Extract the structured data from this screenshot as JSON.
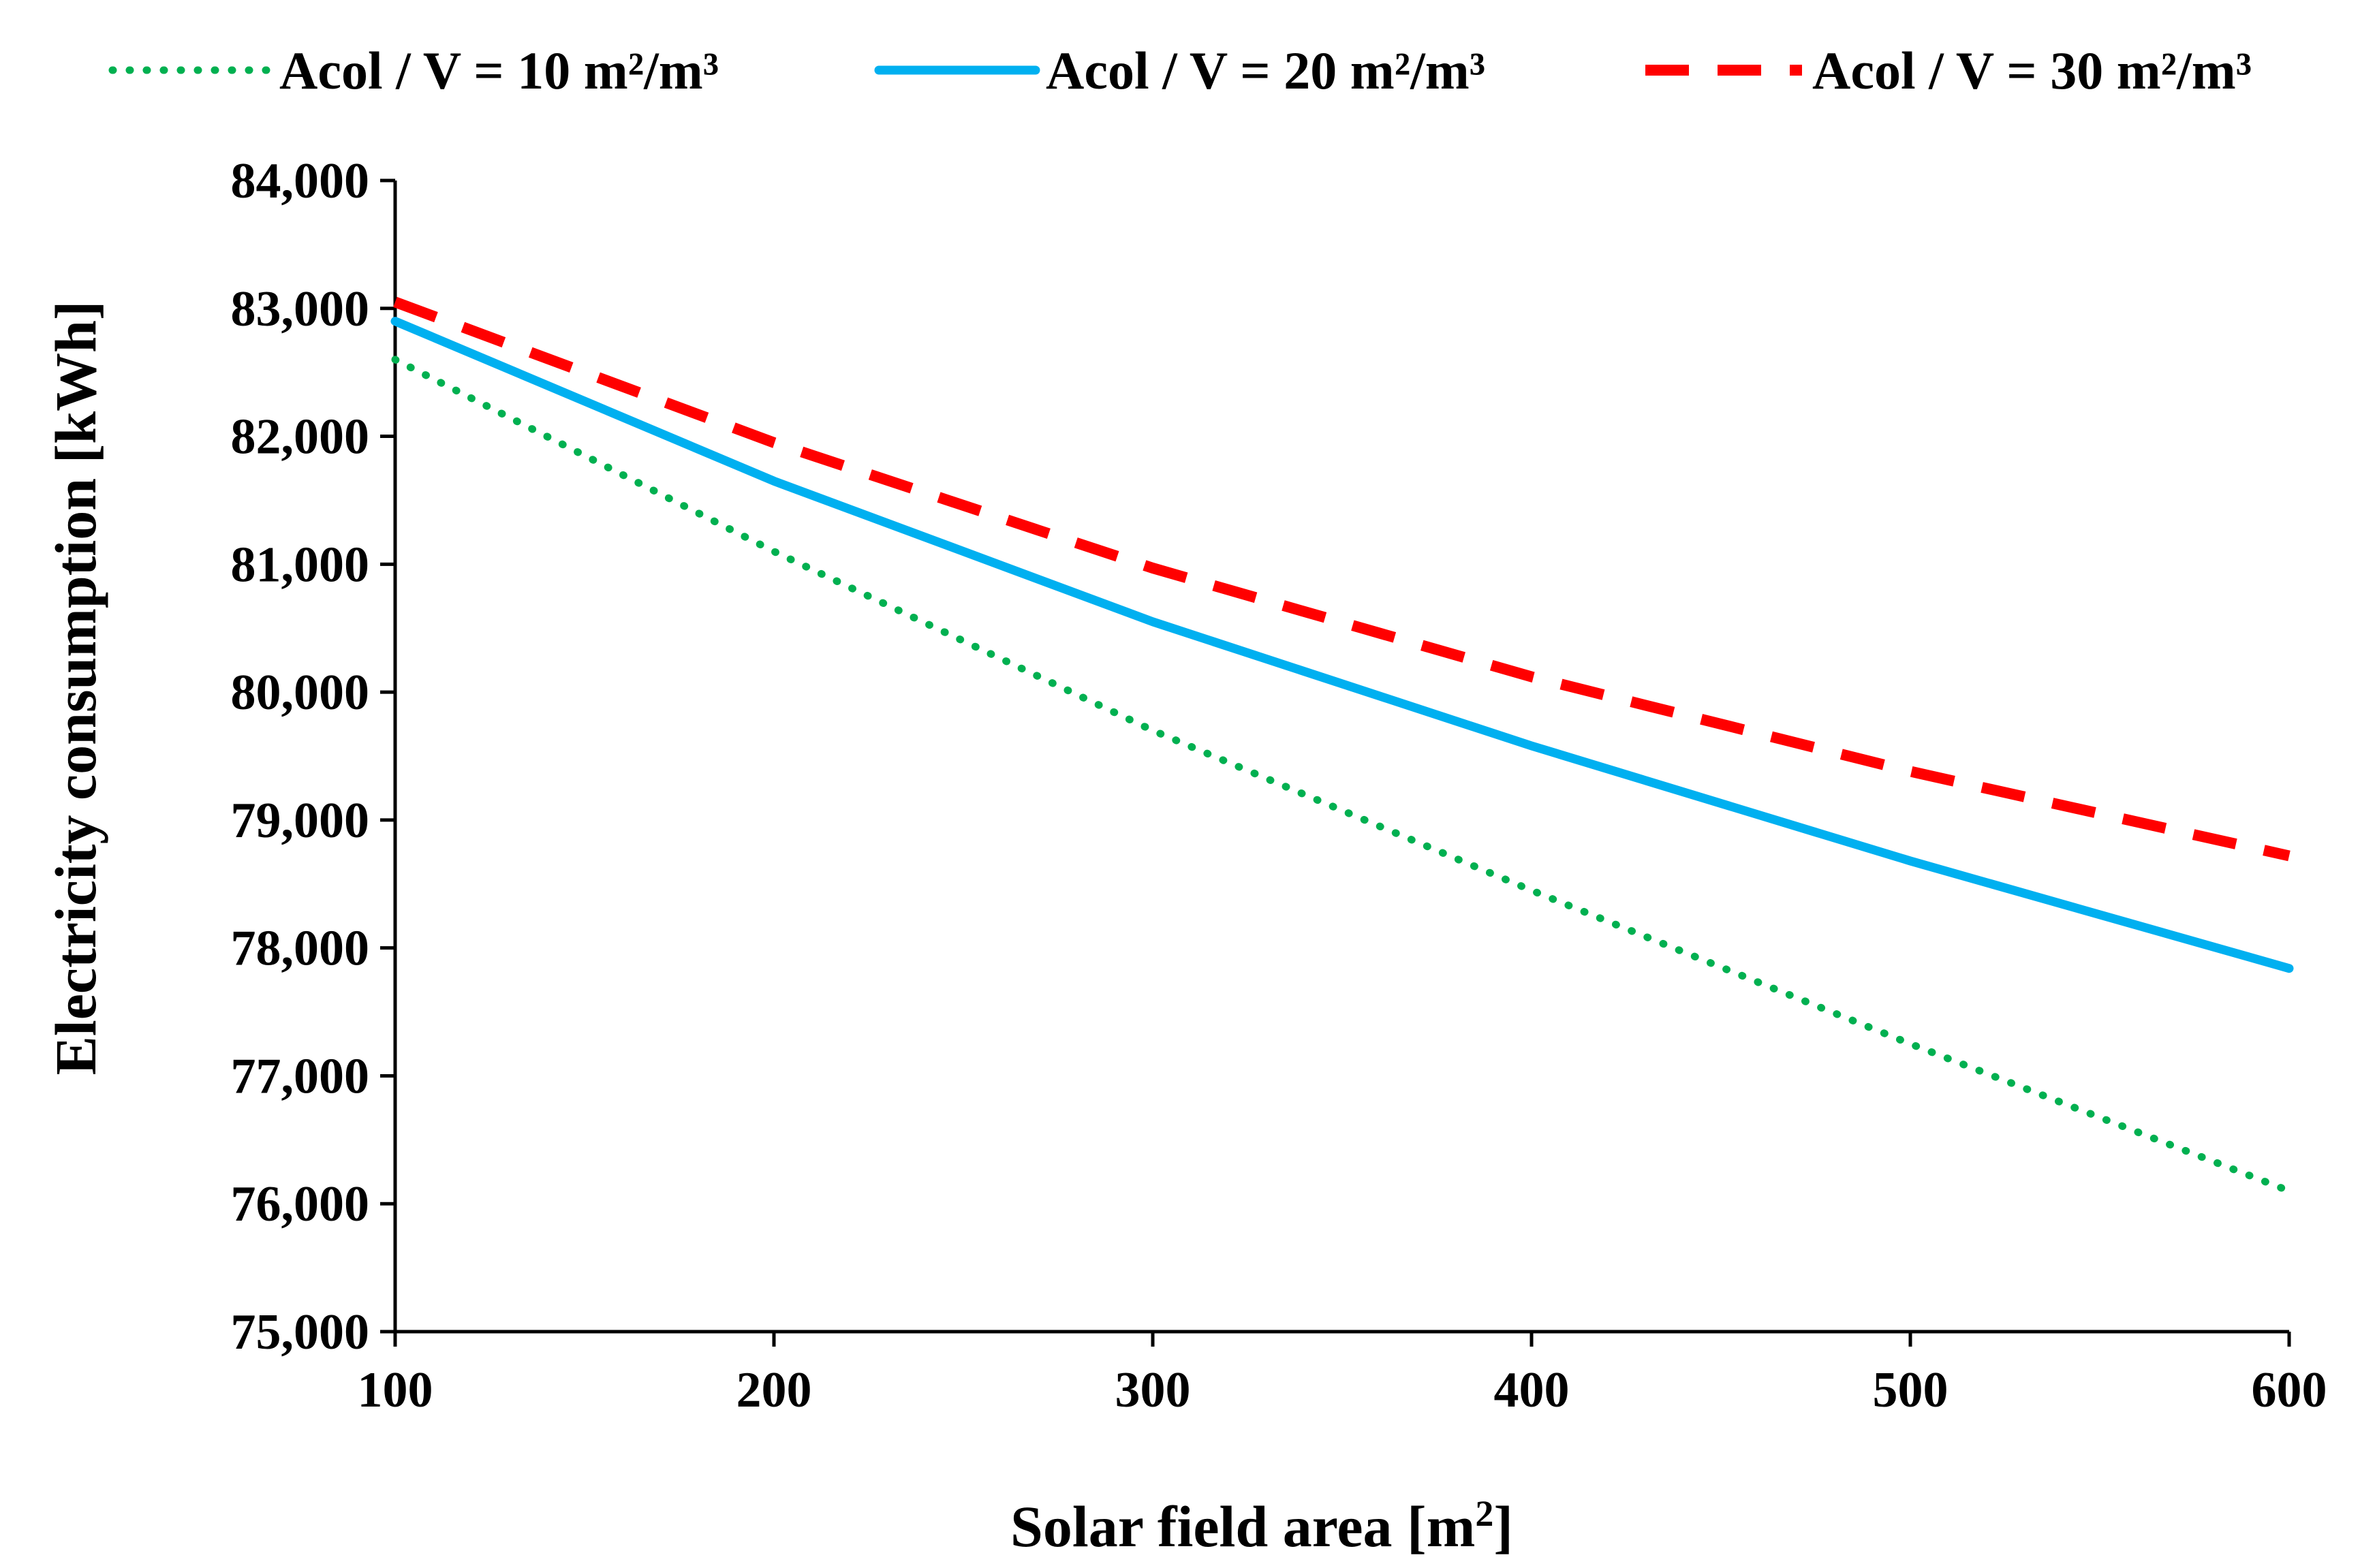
{
  "chart_data": {
    "type": "line",
    "title": "",
    "xlabel": "Solar field area [m",
    "xlabel_sup": "2",
    "xlabel_end": "]",
    "ylabel": "Electricity consumption [kWh]",
    "x": [
      100,
      200,
      300,
      400,
      500,
      600
    ],
    "xlim": [
      100,
      600
    ],
    "ylim": [
      75000,
      84000
    ],
    "x_ticks": [
      100,
      200,
      300,
      400,
      500,
      600
    ],
    "x_tick_labels": [
      "100",
      "200",
      "300",
      "400",
      "500",
      "600"
    ],
    "y_ticks": [
      75000,
      76000,
      77000,
      78000,
      79000,
      80000,
      81000,
      82000,
      83000,
      84000
    ],
    "y_tick_labels": [
      "75,000",
      "76,000",
      "77,000",
      "78,000",
      "79,000",
      "80,000",
      "81,000",
      "82,000",
      "83,000",
      "84,000"
    ],
    "grid": false,
    "legend_position": "top",
    "series": [
      {
        "name": "Acol / V = 10 m²/m³",
        "color": "#00b050",
        "style": "dotted",
        "values": [
          82600,
          81100,
          79700,
          78450,
          77250,
          76100
        ]
      },
      {
        "name": "Acol / V = 20 m²/m³",
        "color": "#00b0f0",
        "style": "solid",
        "values": [
          82900,
          81650,
          80550,
          79580,
          78680,
          77840
        ]
      },
      {
        "name": "Acol / V = 30 m²/m³",
        "color": "#ff0000",
        "style": "dashed",
        "values": [
          83050,
          81950,
          80970,
          80120,
          79380,
          78720
        ]
      }
    ]
  }
}
